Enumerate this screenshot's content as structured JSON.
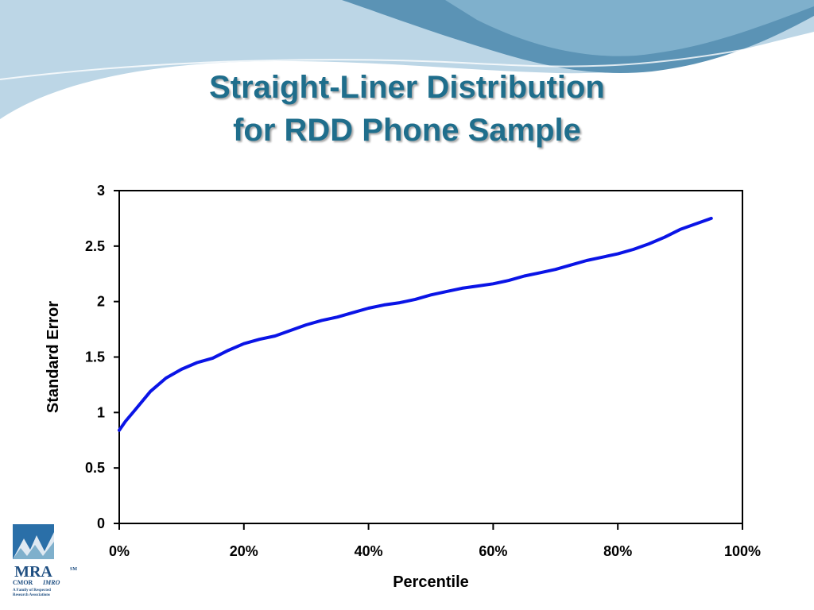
{
  "slide": {
    "title_line1": "Straight-Liner Distribution",
    "title_line2": "for RDD Phone Sample"
  },
  "colors": {
    "title": "#1f6e8c",
    "wave_dark": "#5b93b5",
    "wave_light": "#a9cbe0",
    "series": "#0a14e6"
  },
  "logo": {
    "name": "MRA",
    "sm": "SM",
    "sub1": "CMOR",
    "sub1b": "IMRO",
    "sub2": "A Family of Respected",
    "sub3": "Research Associations"
  },
  "chart_data": {
    "type": "line",
    "xlabel": "Percentile",
    "ylabel": "Standard Error",
    "xlim": [
      0,
      100
    ],
    "ylim": [
      0,
      3
    ],
    "xticks": [
      "0%",
      "20%",
      "40%",
      "60%",
      "80%",
      "100%"
    ],
    "yticks": [
      "0",
      "0.5",
      "1",
      "1.5",
      "2",
      "2.5",
      "3"
    ],
    "grid": false,
    "legend": "none",
    "series": [
      {
        "x": [
          0,
          1,
          2.5,
          5,
          7.5,
          10,
          12.5,
          15,
          17.5,
          20,
          22.5,
          25,
          27.5,
          30,
          32.5,
          35,
          37.5,
          40,
          42.5,
          45,
          47.5,
          50,
          52.5,
          55,
          57.5,
          60,
          62.5,
          65,
          67.5,
          70,
          72.5,
          75,
          77.5,
          80,
          82.5,
          85,
          87.5,
          90,
          92.5,
          95
        ],
        "y": [
          0.84,
          0.92,
          1.02,
          1.19,
          1.31,
          1.39,
          1.45,
          1.49,
          1.56,
          1.62,
          1.66,
          1.69,
          1.74,
          1.79,
          1.83,
          1.86,
          1.9,
          1.94,
          1.97,
          1.99,
          2.02,
          2.06,
          2.09,
          2.12,
          2.14,
          2.16,
          2.19,
          2.23,
          2.26,
          2.29,
          2.33,
          2.37,
          2.4,
          2.43,
          2.47,
          2.52,
          2.58,
          2.65,
          2.7,
          2.75
        ]
      }
    ]
  }
}
